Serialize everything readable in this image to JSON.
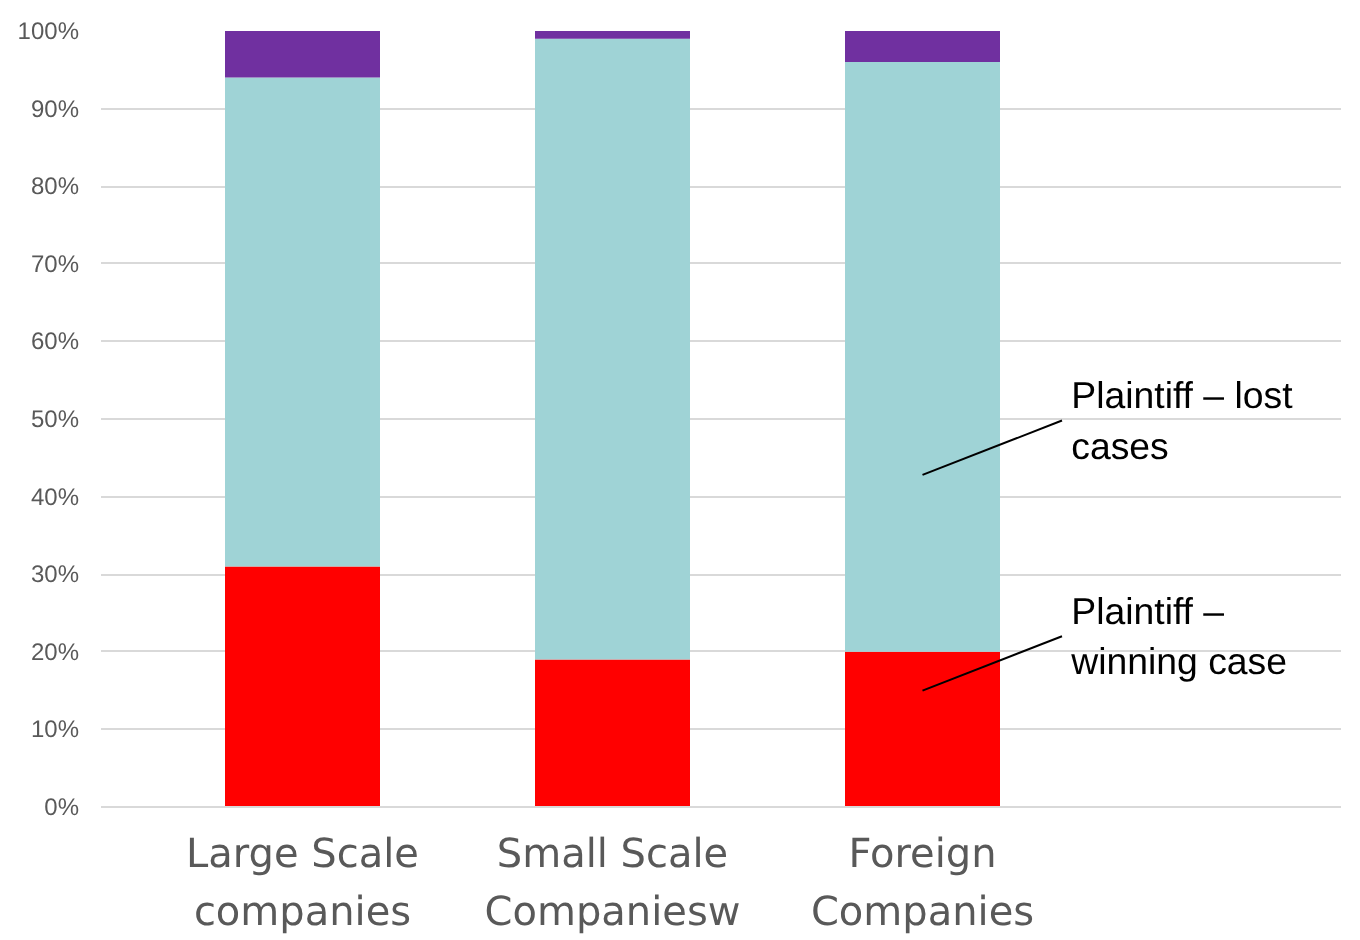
{
  "chart_data": {
    "type": "bar",
    "stacked": true,
    "categories": [
      "Large Scale\ncompanies",
      "Small Scale\nCompaniesw",
      "Foreign\nCompanies"
    ],
    "series": [
      {
        "color": "#ff0000",
        "values": [
          31,
          19,
          20
        ]
      },
      {
        "color": "#9fd3d6",
        "values": [
          63,
          80,
          76
        ]
      },
      {
        "color": "#7030a0",
        "values": [
          6,
          1,
          4
        ]
      }
    ],
    "ylim": [
      0,
      100
    ],
    "yticks": [
      {
        "value": 0,
        "label": "0%"
      },
      {
        "value": 10,
        "label": "10%"
      },
      {
        "value": 20,
        "label": "20%"
      },
      {
        "value": 30,
        "label": "30%"
      },
      {
        "value": 40,
        "label": "40%"
      },
      {
        "value": 50,
        "label": "50%"
      },
      {
        "value": 60,
        "label": "60%"
      },
      {
        "value": 70,
        "label": "70%"
      },
      {
        "value": 80,
        "label": "80%"
      },
      {
        "value": 90,
        "label": "90%"
      },
      {
        "value": 100,
        "label": "100%"
      }
    ],
    "grid": "y",
    "annotations": [
      "Plaintiff – lost\ncases",
      "Plaintiff –\nwinning case"
    ]
  }
}
